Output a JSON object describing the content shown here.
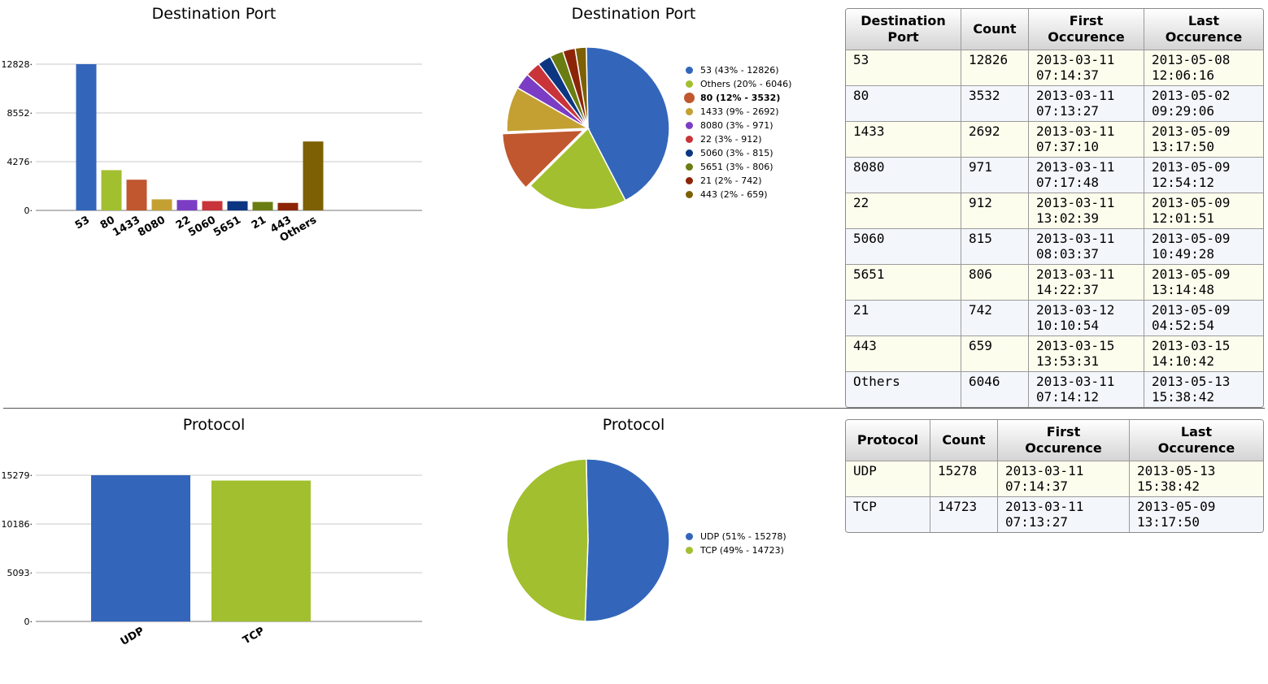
{
  "port": {
    "bar_title": "Destination Port",
    "pie_title": "Destination Port",
    "table": {
      "headers": [
        "Destination\nPort",
        "Count",
        "First\nOccurence",
        "Last\nOccurence"
      ],
      "rows": [
        [
          "53",
          "12826",
          "2013-03-11\n07:14:37",
          "2013-05-08\n12:06:16"
        ],
        [
          "80",
          "3532",
          "2013-03-11\n07:13:27",
          "2013-05-02\n09:29:06"
        ],
        [
          "1433",
          "2692",
          "2013-03-11\n07:37:10",
          "2013-05-09\n13:17:50"
        ],
        [
          "8080",
          "971",
          "2013-03-11\n07:17:48",
          "2013-05-09\n12:54:12"
        ],
        [
          "22",
          "912",
          "2013-03-11\n13:02:39",
          "2013-05-09\n12:01:51"
        ],
        [
          "5060",
          "815",
          "2013-03-11\n08:03:37",
          "2013-05-09\n10:49:28"
        ],
        [
          "5651",
          "806",
          "2013-03-11\n14:22:37",
          "2013-05-09\n13:14:48"
        ],
        [
          "21",
          "742",
          "2013-03-12\n10:10:54",
          "2013-05-09\n04:52:54"
        ],
        [
          "443",
          "659",
          "2013-03-15\n13:53:31",
          "2013-03-15\n14:10:42"
        ],
        [
          "Others",
          "6046",
          "2013-03-11\n07:14:12",
          "2013-05-13\n15:38:42"
        ]
      ]
    }
  },
  "protocol": {
    "bar_title": "Protocol",
    "pie_title": "Protocol",
    "table": {
      "headers": [
        "Protocol",
        "Count",
        "First\nOccurence",
        "Last\nOccurence"
      ],
      "rows": [
        [
          "UDP",
          "15278",
          "2013-03-11\n07:14:37",
          "2013-05-13\n15:38:42"
        ],
        [
          "TCP",
          "14723",
          "2013-03-11\n07:13:27",
          "2013-05-09\n13:17:50"
        ]
      ]
    }
  },
  "chart_data": [
    {
      "type": "bar",
      "title": "Destination Port",
      "categories": [
        "53",
        "80",
        "1433",
        "8080",
        "22",
        "5060",
        "5651",
        "21",
        "443",
        "Others"
      ],
      "values": [
        12826,
        3532,
        2692,
        971,
        912,
        815,
        806,
        742,
        659,
        6046
      ],
      "colors": [
        "#3366bb",
        "#a2bf2f",
        "#c0572e",
        "#c4a033",
        "#7b3dc4",
        "#c8343a",
        "#0d3682",
        "#6a7d12",
        "#8c2508",
        "#7d6003"
      ],
      "yticks": [
        0,
        4276,
        8552,
        12828
      ],
      "ylim": [
        0,
        12828
      ],
      "grid": true
    },
    {
      "type": "pie",
      "title": "Destination Port",
      "labels": [
        "53",
        "Others",
        "80",
        "1433",
        "8080",
        "22",
        "5060",
        "5651",
        "21",
        "443"
      ],
      "values": [
        12826,
        6046,
        3532,
        2692,
        971,
        912,
        815,
        806,
        742,
        659
      ],
      "legend": [
        "53 (43% - 12826)",
        "Others (20% - 6046)",
        "80 (12% - 3532)",
        "1433 (9% - 2692)",
        "8080 (3% - 971)",
        "22 (3% - 912)",
        "5060 (3% - 815)",
        "5651 (3% - 806)",
        "21 (2% - 742)",
        "443 (2% - 659)"
      ],
      "colors": [
        "#3366bb",
        "#a2bf2f",
        "#c0572e",
        "#c4a033",
        "#7b3dc4",
        "#c8343a",
        "#0d3682",
        "#6a7d12",
        "#8c2508",
        "#7d6003"
      ],
      "highlighted": "80",
      "legend_position": "right"
    },
    {
      "type": "bar",
      "title": "Protocol",
      "categories": [
        "UDP",
        "TCP"
      ],
      "values": [
        15278,
        14723
      ],
      "colors": [
        "#3366bb",
        "#a2bf2f"
      ],
      "yticks": [
        0,
        5093,
        10186,
        15279
      ],
      "ylim": [
        0,
        15279
      ],
      "grid": true
    },
    {
      "type": "pie",
      "title": "Protocol",
      "labels": [
        "UDP",
        "TCP"
      ],
      "values": [
        15278,
        14723
      ],
      "legend": [
        "UDP (51% - 15278)",
        "TCP (49% - 14723)"
      ],
      "colors": [
        "#3366bb",
        "#a2bf2f"
      ],
      "legend_position": "right"
    }
  ]
}
